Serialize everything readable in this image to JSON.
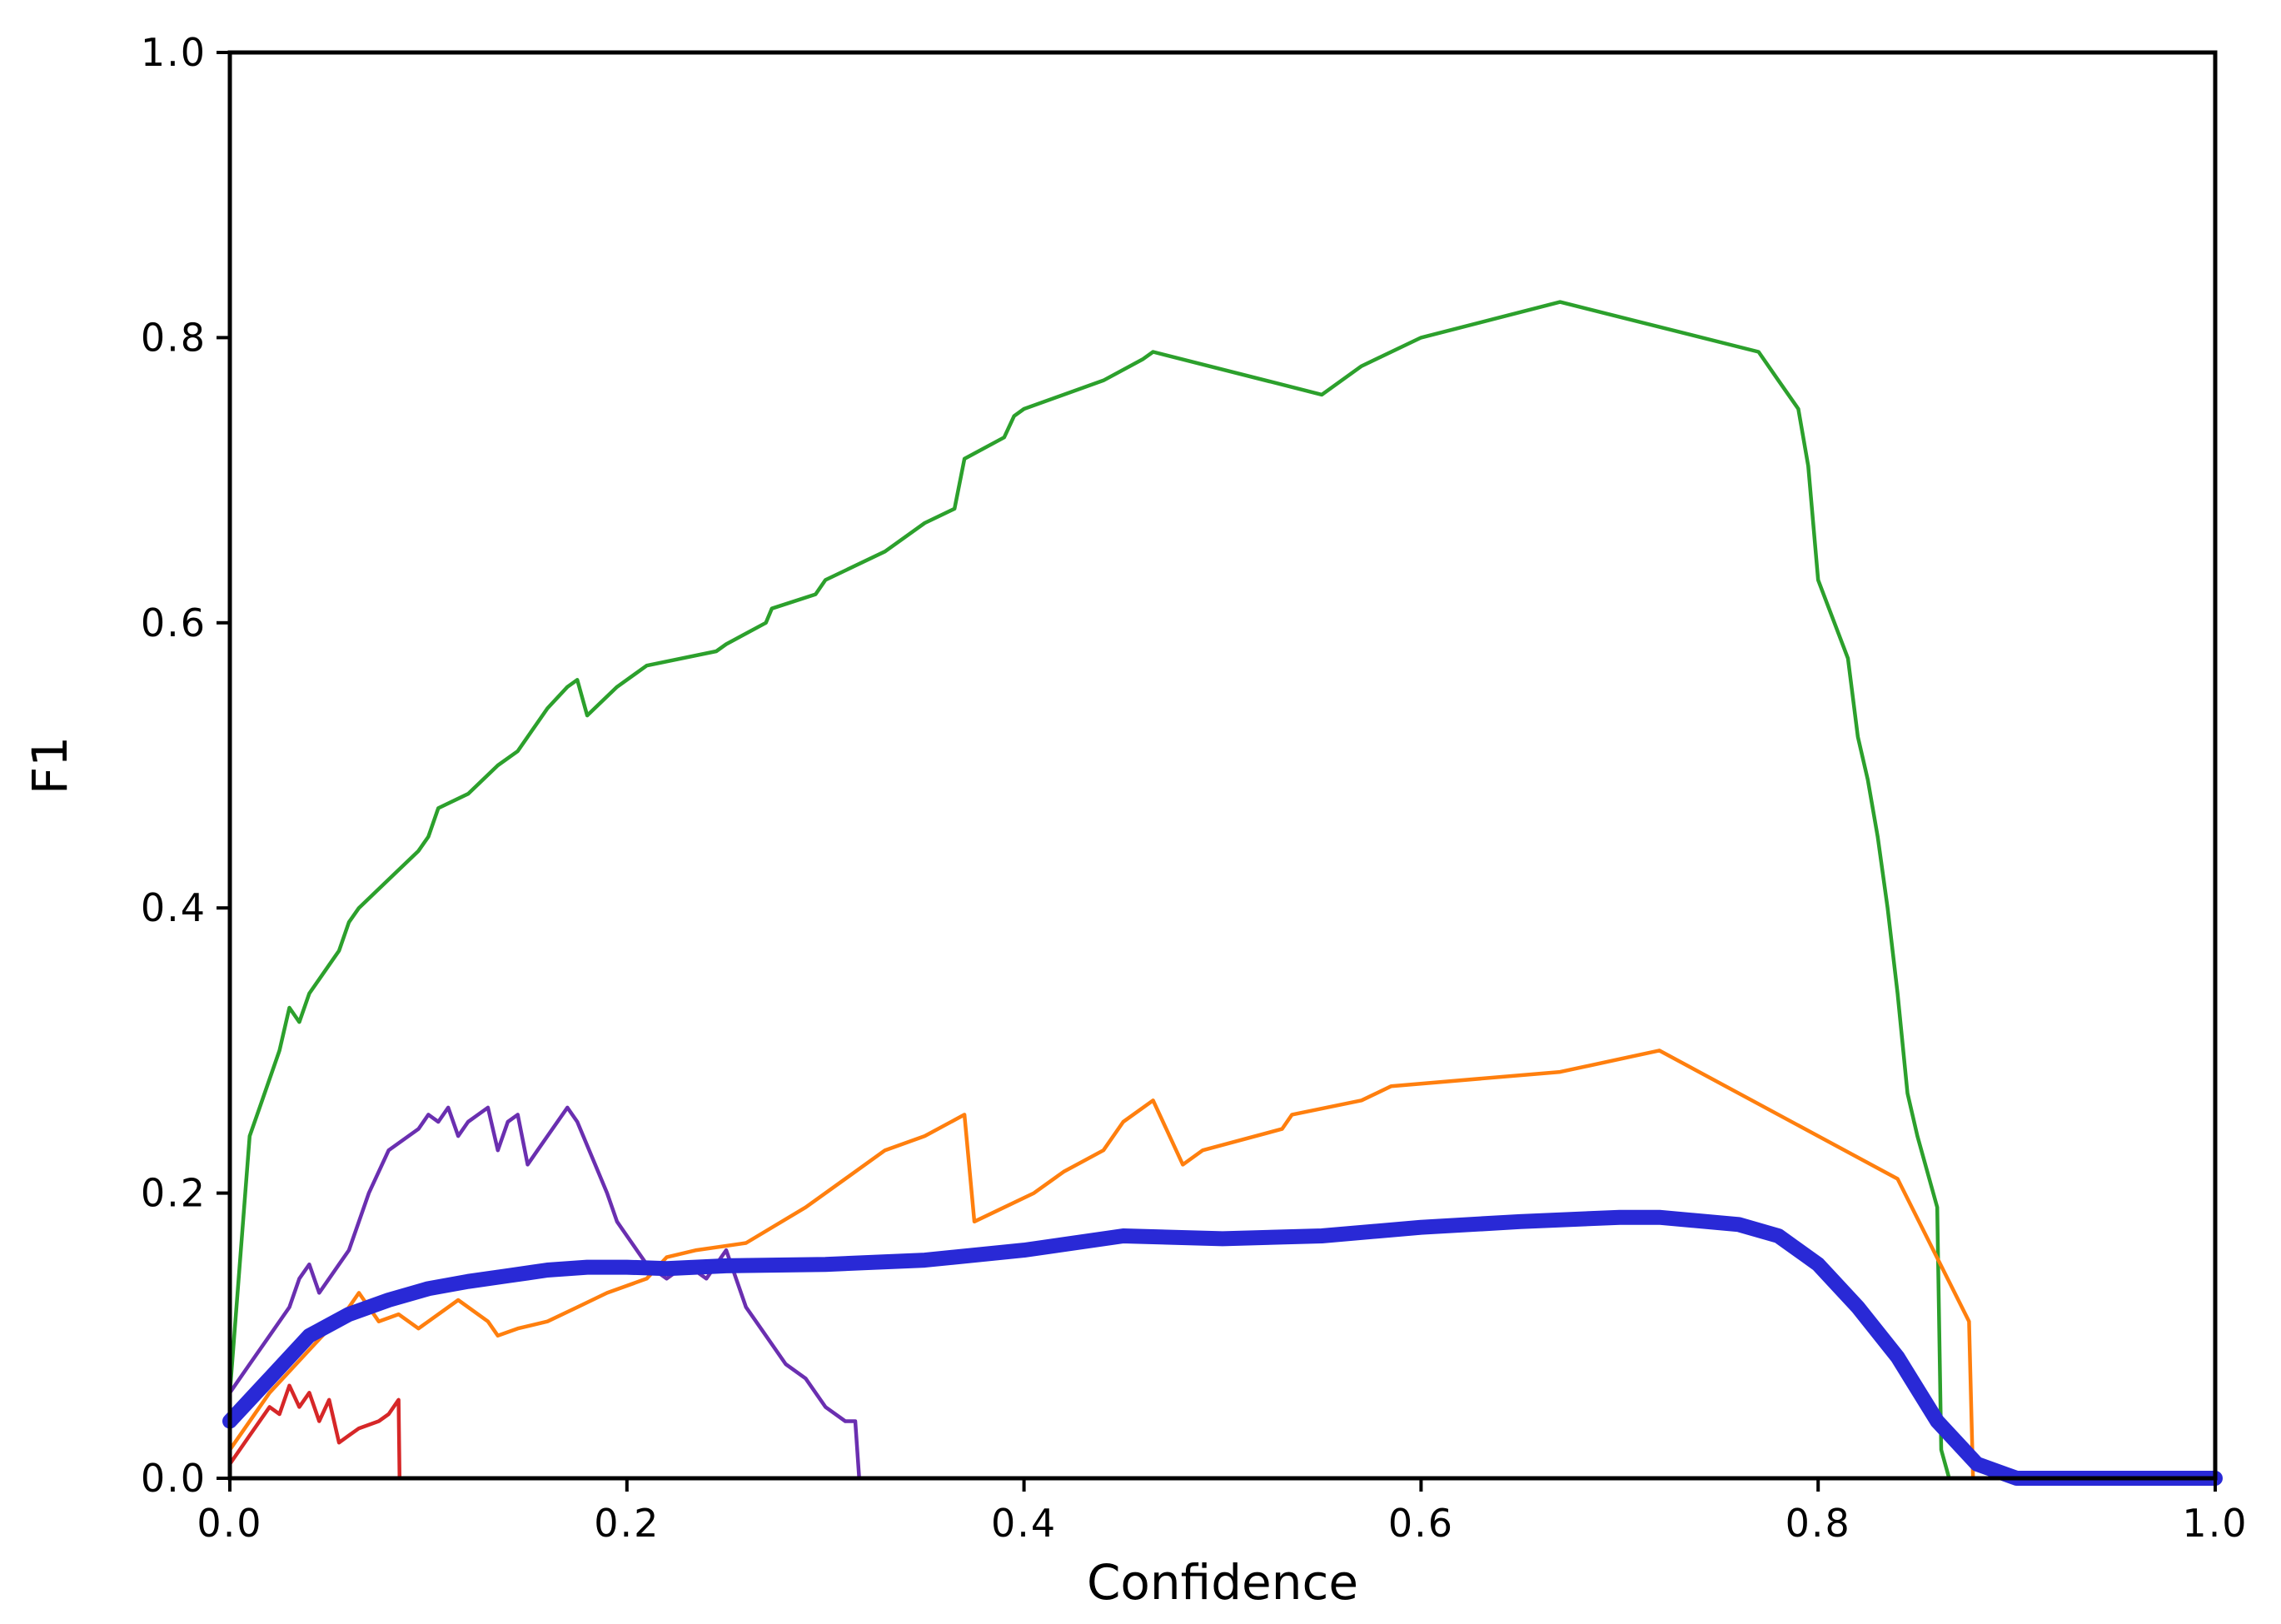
{
  "chart_data": {
    "type": "line",
    "title": "",
    "xlabel": "Confidence",
    "ylabel": "F1",
    "xlim": [
      0.0,
      1.0
    ],
    "ylim": [
      0.0,
      1.0
    ],
    "xticks": [
      "0.0",
      "0.2",
      "0.4",
      "0.6",
      "0.8",
      "1.0"
    ],
    "yticks": [
      "0.0",
      "0.2",
      "0.4",
      "0.6",
      "0.8",
      "1.0"
    ],
    "grid": false,
    "legend": "none",
    "series": [
      {
        "color": "#2ca02c",
        "x": [
          0.0,
          0.01,
          0.015,
          0.02,
          0.025,
          0.03,
          0.035,
          0.04,
          0.045,
          0.05,
          0.055,
          0.06,
          0.065,
          0.08,
          0.095,
          0.1,
          0.105,
          0.12,
          0.135,
          0.145,
          0.155,
          0.16,
          0.17,
          0.175,
          0.18,
          0.195,
          0.21,
          0.245,
          0.25,
          0.27,
          0.273,
          0.295,
          0.3,
          0.33,
          0.35,
          0.365,
          0.37,
          0.39,
          0.395,
          0.4,
          0.44,
          0.46,
          0.465,
          0.55,
          0.57,
          0.6,
          0.67,
          0.77,
          0.78,
          0.79,
          0.795,
          0.8,
          0.815,
          0.82,
          0.825,
          0.83,
          0.835,
          0.84,
          0.845,
          0.85,
          0.86,
          0.862,
          0.866
        ],
        "y": [
          0.06,
          0.24,
          0.26,
          0.28,
          0.3,
          0.33,
          0.32,
          0.34,
          0.35,
          0.36,
          0.37,
          0.39,
          0.4,
          0.42,
          0.44,
          0.45,
          0.47,
          0.48,
          0.5,
          0.51,
          0.53,
          0.54,
          0.555,
          0.56,
          0.535,
          0.555,
          0.57,
          0.58,
          0.585,
          0.6,
          0.61,
          0.62,
          0.63,
          0.65,
          0.67,
          0.68,
          0.715,
          0.73,
          0.745,
          0.75,
          0.77,
          0.785,
          0.79,
          0.76,
          0.78,
          0.8,
          0.825,
          0.79,
          0.77,
          0.75,
          0.71,
          0.63,
          0.575,
          0.52,
          0.49,
          0.45,
          0.4,
          0.34,
          0.27,
          0.24,
          0.19,
          0.02,
          0.0
        ]
      },
      {
        "color": "#ff7f0e",
        "x": [
          0.0,
          0.02,
          0.04,
          0.06,
          0.065,
          0.075,
          0.085,
          0.095,
          0.1,
          0.115,
          0.13,
          0.135,
          0.145,
          0.16,
          0.175,
          0.19,
          0.21,
          0.22,
          0.235,
          0.26,
          0.29,
          0.31,
          0.33,
          0.35,
          0.37,
          0.375,
          0.39,
          0.405,
          0.42,
          0.44,
          0.45,
          0.465,
          0.48,
          0.49,
          0.53,
          0.535,
          0.57,
          0.585,
          0.67,
          0.72,
          0.84,
          0.876,
          0.878
        ],
        "y": [
          0.02,
          0.06,
          0.09,
          0.12,
          0.13,
          0.11,
          0.115,
          0.105,
          0.11,
          0.125,
          0.11,
          0.1,
          0.105,
          0.11,
          0.12,
          0.13,
          0.14,
          0.155,
          0.16,
          0.165,
          0.19,
          0.21,
          0.23,
          0.24,
          0.255,
          0.18,
          0.19,
          0.2,
          0.215,
          0.23,
          0.25,
          0.265,
          0.22,
          0.23,
          0.245,
          0.255,
          0.265,
          0.275,
          0.285,
          0.3,
          0.21,
          0.11,
          0.0
        ]
      },
      {
        "color": "#d62728",
        "x": [
          0.0,
          0.01,
          0.02,
          0.025,
          0.03,
          0.035,
          0.04,
          0.045,
          0.05,
          0.055,
          0.06,
          0.065,
          0.075,
          0.08,
          0.085,
          0.0855
        ],
        "y": [
          0.01,
          0.03,
          0.05,
          0.045,
          0.065,
          0.05,
          0.06,
          0.04,
          0.055,
          0.025,
          0.03,
          0.035,
          0.04,
          0.045,
          0.055,
          0.0
        ]
      },
      {
        "color": "#6a2fb0",
        "x": [
          0.0,
          0.01,
          0.02,
          0.03,
          0.035,
          0.04,
          0.045,
          0.05,
          0.055,
          0.06,
          0.065,
          0.07,
          0.08,
          0.09,
          0.095,
          0.1,
          0.105,
          0.11,
          0.115,
          0.12,
          0.125,
          0.13,
          0.135,
          0.14,
          0.145,
          0.15,
          0.155,
          0.16,
          0.17,
          0.175,
          0.19,
          0.195,
          0.2,
          0.205,
          0.21,
          0.22,
          0.23,
          0.24,
          0.25,
          0.26,
          0.265,
          0.275,
          0.28,
          0.29,
          0.3,
          0.31,
          0.315,
          0.317
        ],
        "y": [
          0.06,
          0.08,
          0.1,
          0.12,
          0.14,
          0.15,
          0.13,
          0.14,
          0.15,
          0.16,
          0.18,
          0.2,
          0.23,
          0.24,
          0.245,
          0.255,
          0.25,
          0.26,
          0.24,
          0.25,
          0.255,
          0.26,
          0.23,
          0.25,
          0.255,
          0.22,
          0.23,
          0.24,
          0.26,
          0.25,
          0.2,
          0.18,
          0.17,
          0.16,
          0.15,
          0.14,
          0.15,
          0.14,
          0.16,
          0.12,
          0.11,
          0.09,
          0.08,
          0.07,
          0.05,
          0.04,
          0.04,
          0.0
        ]
      },
      {
        "color": "#2929d6",
        "x": [
          0.0,
          0.02,
          0.04,
          0.06,
          0.08,
          0.1,
          0.12,
          0.14,
          0.16,
          0.18,
          0.2,
          0.22,
          0.25,
          0.3,
          0.35,
          0.4,
          0.45,
          0.5,
          0.55,
          0.6,
          0.65,
          0.7,
          0.72,
          0.76,
          0.78,
          0.8,
          0.82,
          0.84,
          0.86,
          0.88,
          0.9,
          0.95,
          1.0
        ],
        "y": [
          0.04,
          0.07,
          0.1,
          0.115,
          0.125,
          0.133,
          0.138,
          0.142,
          0.146,
          0.148,
          0.148,
          0.147,
          0.149,
          0.15,
          0.153,
          0.16,
          0.17,
          0.168,
          0.17,
          0.176,
          0.18,
          0.183,
          0.183,
          0.178,
          0.17,
          0.15,
          0.12,
          0.085,
          0.04,
          0.01,
          0.0,
          0.0,
          0.0
        ]
      }
    ]
  }
}
